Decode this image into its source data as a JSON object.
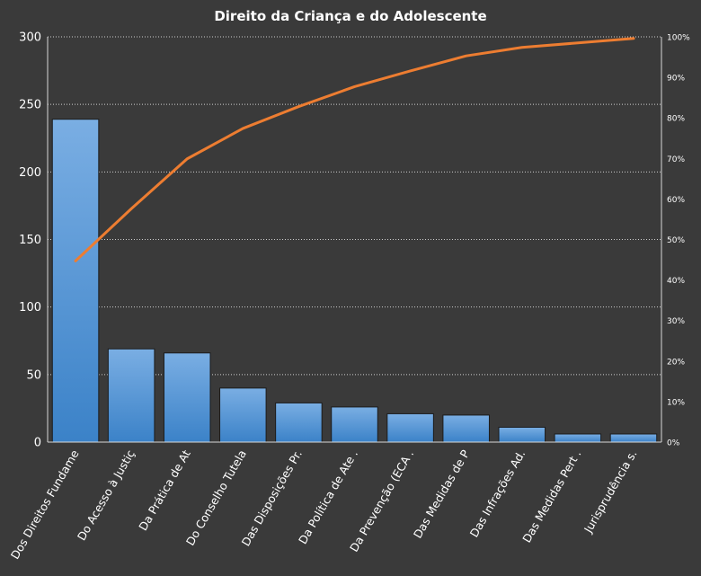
{
  "chart_data": {
    "type": "bar",
    "title": "Direito  da Criança e do Adolescente",
    "categories": [
      "Dos Direitos Fundame",
      "Do Acesso à Justiç",
      "Da Prática de At",
      "Do Conselho Tutela",
      "Das Disposições Pr.",
      "Da Política de Ate .",
      "Da Prevenção (ECA .",
      "Das Medidas de P",
      "Das Infrações Ad.",
      "Das Medidas Pert .",
      "Jurisprudência s."
    ],
    "series": [
      {
        "type": "bar",
        "axis": "left",
        "values": [
          239,
          69,
          66,
          40,
          29,
          26,
          21,
          20,
          11,
          6,
          6
        ]
      },
      {
        "type": "line",
        "axis": "right",
        "values": [
          44.7,
          57.6,
          69.9,
          77.4,
          82.8,
          87.7,
          91.6,
          95.3,
          97.4,
          98.5,
          99.6
        ]
      }
    ],
    "ylim": [
      0,
      300
    ],
    "yticks": [
      "0",
      "50",
      "100",
      "150",
      "200",
      "250",
      "300"
    ],
    "y2lim": [
      0,
      100
    ],
    "y2ticks": [
      "0%",
      "10%",
      "20%",
      "30%",
      "40%",
      "50%",
      "60%",
      "70%",
      "80%",
      "90%",
      "100%"
    ],
    "grid": true,
    "legend": "none",
    "colors": {
      "background": "#3a3a3a",
      "bar_top": "#7aaee3",
      "bar_bottom": "#3b82c8",
      "line": "#ed7d31",
      "text": "#ffffff"
    }
  }
}
